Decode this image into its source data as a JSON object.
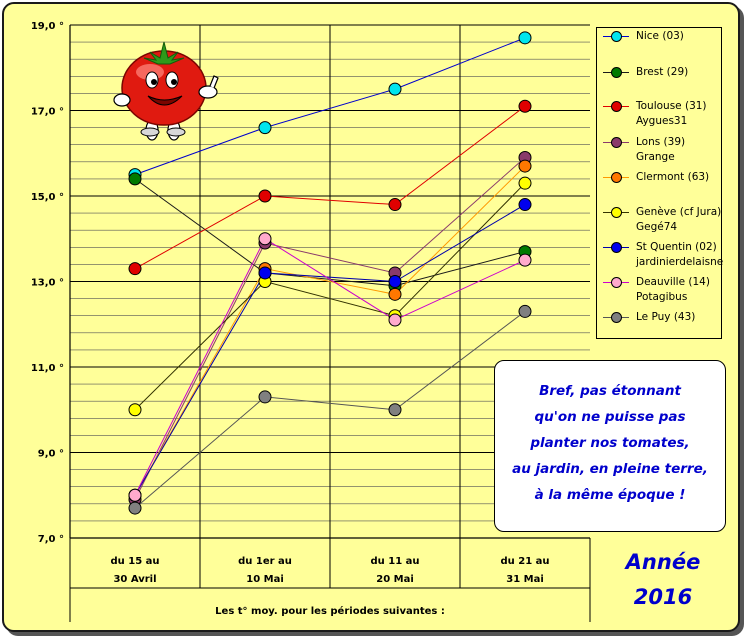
{
  "chart_data": {
    "type": "line",
    "categories": [
      [
        "du 15 au",
        "30 Avril"
      ],
      [
        "du 1er au",
        "10 Mai"
      ],
      [
        "du 11 au",
        "20 Mai"
      ],
      [
        "du 21 au",
        "31 Mai"
      ]
    ],
    "xlabel": "Les t° moy. pour les périodes suivantes :",
    "ylim": [
      7,
      19
    ],
    "yticks": [
      "7,0 °",
      "9,0 °",
      "11,0 °",
      "13,0 °",
      "15,0 °",
      "17,0 °",
      "19,0 °"
    ],
    "grid": true,
    "legend_position": "right",
    "series": [
      {
        "name": "Nice (03)",
        "name2": "",
        "color": "#00e5ee",
        "line": "#0000cc",
        "values": [
          15.5,
          16.6,
          17.5,
          18.7
        ]
      },
      {
        "name": "Brest (29)",
        "name2": "",
        "color": "#007a00",
        "line": "#1a1a1a",
        "values": [
          15.4,
          13.2,
          12.9,
          13.7
        ]
      },
      {
        "name": "Toulouse (31)",
        "name2": "Aygues31",
        "color": "#e00000",
        "line": "#e00000",
        "values": [
          13.3,
          15.0,
          14.8,
          17.1
        ]
      },
      {
        "name": "Lons (39)",
        "name2": "Grange",
        "color": "#8a3a6a",
        "line": "#8a3a6a",
        "values": [
          7.9,
          13.9,
          13.2,
          15.9
        ]
      },
      {
        "name": "Clermont (63)",
        "name2": "",
        "color": "#ff7700",
        "line": "#ff9900",
        "values": [
          8.0,
          13.3,
          12.7,
          15.7
        ]
      },
      {
        "name": "Genève (cf Jura)",
        "name2": "Gegé74",
        "color": "#ffff00",
        "line": "#333300",
        "values": [
          10.0,
          13.0,
          12.2,
          15.3
        ]
      },
      {
        "name": "St Quentin (02)",
        "name2": "jardinierdelaisne",
        "color": "#0000ee",
        "line": "#0000aa",
        "values": [
          8.0,
          13.2,
          13.0,
          14.8
        ]
      },
      {
        "name": "Deauville (14)",
        "name2": "Potagibus",
        "color": "#ffaacc",
        "line": "#cc00cc",
        "values": [
          8.0,
          14.0,
          12.1,
          13.5
        ]
      },
      {
        "name": "Le Puy (43)",
        "name2": "",
        "color": "#808080",
        "line": "#555555",
        "values": [
          7.7,
          10.3,
          10.0,
          12.3
        ]
      }
    ]
  },
  "note": [
    "Bref, pas étonnant",
    "qu'on ne puisse pas",
    "planter nos tomates,",
    "au jardin, en pleine terre,",
    "à la même époque !"
  ],
  "year": [
    "Année",
    "2016"
  ],
  "colors": {
    "background": "#ffff99",
    "note_text": "#0000cc",
    "tomato": "#e01a10"
  },
  "icon": "tomato-mascot-icon"
}
